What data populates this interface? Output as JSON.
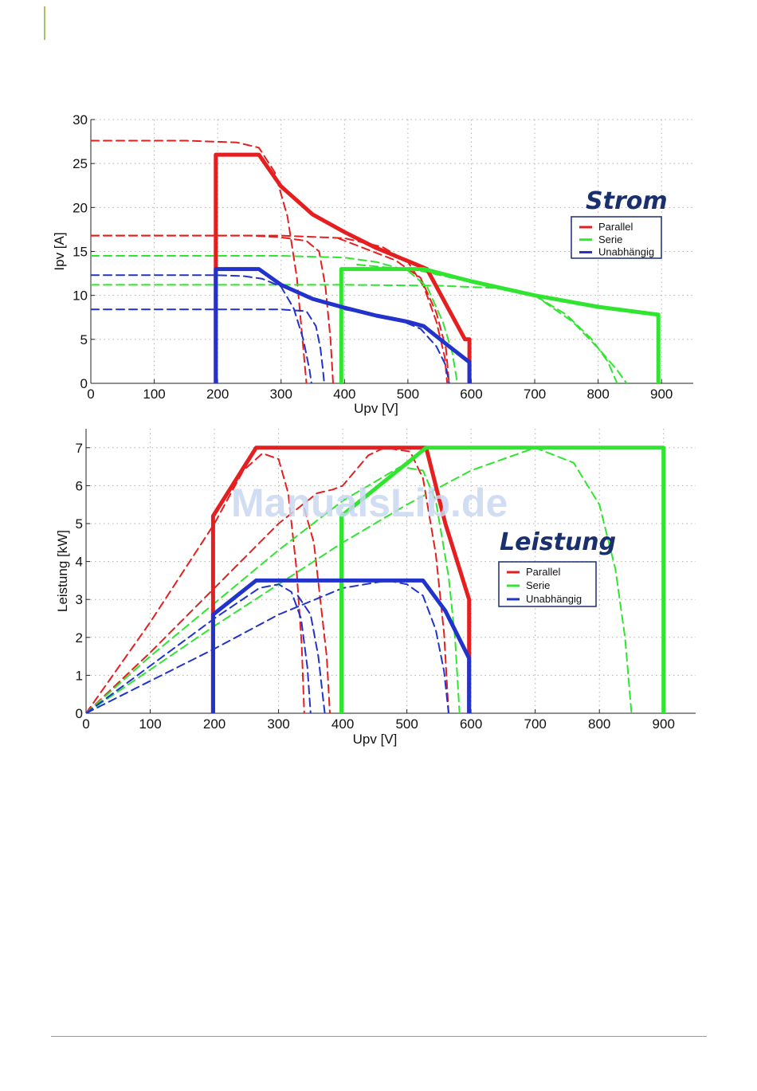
{
  "watermark": "ManualsLib.de",
  "colors": {
    "parallel": "#e51f1f",
    "serie": "#2fe52f",
    "unabhaengig": "#2233cc",
    "grid": "#b0b0b0",
    "title": "#1a2f6e"
  },
  "chart_data": [
    {
      "type": "line",
      "title": "Strom",
      "xlabel": "Upv [V]",
      "ylabel": "Ipv [A]",
      "xlim": [
        0,
        950
      ],
      "ylim": [
        0,
        30
      ],
      "xticks": [
        0,
        100,
        200,
        300,
        400,
        500,
        600,
        700,
        800,
        900
      ],
      "yticks": [
        0,
        5,
        10,
        15,
        20,
        25,
        30
      ],
      "grid": true,
      "legend_position": "right",
      "legend": [
        "Parallel",
        "Serie",
        "Unabhängig"
      ],
      "series": [
        {
          "name": "Parallel",
          "style": "solid",
          "color": "parallel",
          "points": [
            [
              197,
              0
            ],
            [
              197,
              26
            ],
            [
              265,
              26
            ],
            [
              300,
              22.4
            ],
            [
              350,
              19.2
            ],
            [
              400,
              17.2
            ],
            [
              450,
              15.4
            ],
            [
              500,
              13.9
            ],
            [
              530,
              13
            ],
            [
              560,
              9
            ],
            [
              590,
              5
            ],
            [
              597,
              5
            ],
            [
              597,
              0
            ]
          ]
        },
        {
          "name": "Serie",
          "style": "solid",
          "color": "serie",
          "points": [
            [
              395,
              0
            ],
            [
              395,
              13
            ],
            [
              525,
              13
            ],
            [
              600,
              11.6
            ],
            [
              700,
              10
            ],
            [
              800,
              8.7
            ],
            [
              895,
              7.8
            ],
            [
              895,
              0
            ]
          ]
        },
        {
          "name": "Unabhängig",
          "style": "solid",
          "color": "unabhaengig",
          "points": [
            [
              197,
              0
            ],
            [
              197,
              13
            ],
            [
              265,
              13
            ],
            [
              300,
              11.2
            ],
            [
              350,
              9.6
            ],
            [
              400,
              8.6
            ],
            [
              450,
              7.7
            ],
            [
              500,
              7
            ],
            [
              525,
              6.5
            ],
            [
              560,
              4.5
            ],
            [
              597,
              2.4
            ],
            [
              597,
              0
            ]
          ]
        },
        {
          "name": "",
          "style": "dashed",
          "color": "parallel",
          "points": [
            [
              0,
              27.6
            ],
            [
              150,
              27.6
            ],
            [
              230,
              27.4
            ],
            [
              265,
              26.8
            ],
            [
              290,
              24
            ],
            [
              310,
              19
            ],
            [
              325,
              12
            ],
            [
              335,
              4
            ],
            [
              340,
              0
            ]
          ]
        },
        {
          "name": "",
          "style": "dashed",
          "color": "parallel",
          "points": [
            [
              0,
              16.8
            ],
            [
              250,
              16.8
            ],
            [
              300,
              16.6
            ],
            [
              340,
              16.2
            ],
            [
              360,
              15
            ],
            [
              370,
              11
            ],
            [
              378,
              5
            ],
            [
              382,
              0
            ]
          ]
        },
        {
          "name": "",
          "style": "dashed",
          "color": "parallel",
          "points": [
            [
              0,
              16.8
            ],
            [
              300,
              16.8
            ],
            [
              400,
              16.5
            ],
            [
              460,
              15.5
            ],
            [
              500,
              13.8
            ],
            [
              525,
              11
            ],
            [
              545,
              7
            ],
            [
              558,
              3
            ],
            [
              562,
              0
            ]
          ]
        },
        {
          "name": "",
          "style": "dashed",
          "color": "parallel",
          "points": [
            [
              390,
              16.5
            ],
            [
              480,
              14
            ],
            [
              520,
              12
            ],
            [
              545,
              8
            ],
            [
              560,
              4
            ],
            [
              565,
              0
            ]
          ]
        },
        {
          "name": "",
          "style": "dashed",
          "color": "serie",
          "points": [
            [
              0,
              14.5
            ],
            [
              300,
              14.5
            ],
            [
              400,
              14.3
            ],
            [
              450,
              13.8
            ],
            [
              500,
              12.8
            ],
            [
              530,
              11
            ],
            [
              555,
              7
            ],
            [
              570,
              3.5
            ],
            [
              578,
              0
            ]
          ]
        },
        {
          "name": "",
          "style": "dashed",
          "color": "serie",
          "points": [
            [
              0,
              11.2
            ],
            [
              400,
              11.2
            ],
            [
              550,
              11.1
            ],
            [
              650,
              10.8
            ],
            [
              700,
              10
            ],
            [
              750,
              7.8
            ],
            [
              790,
              5
            ],
            [
              815,
              2.5
            ],
            [
              830,
              0
            ]
          ]
        },
        {
          "name": "",
          "style": "dashed",
          "color": "serie",
          "points": [
            [
              420,
              13.5
            ],
            [
              520,
              12.8
            ],
            [
              600,
              11.5
            ],
            [
              700,
              10
            ],
            [
              760,
              7
            ],
            [
              800,
              4
            ],
            [
              830,
              1.5
            ],
            [
              845,
              0
            ]
          ]
        },
        {
          "name": "",
          "style": "dashed",
          "color": "unabhaengig",
          "points": [
            [
              0,
              12.3
            ],
            [
              200,
              12.3
            ],
            [
              240,
              12.2
            ],
            [
              270,
              11.9
            ],
            [
              300,
              11
            ],
            [
              320,
              8.5
            ],
            [
              335,
              5
            ],
            [
              345,
              1.5
            ],
            [
              348,
              0
            ]
          ]
        },
        {
          "name": "",
          "style": "dashed",
          "color": "unabhaengig",
          "points": [
            [
              0,
              8.4
            ],
            [
              300,
              8.4
            ],
            [
              340,
              8.2
            ],
            [
              355,
              6.5
            ],
            [
              362,
              4
            ],
            [
              366,
              1.5
            ],
            [
              368,
              0
            ]
          ]
        },
        {
          "name": "",
          "style": "dashed",
          "color": "unabhaengig",
          "points": [
            [
              400,
              8.4
            ],
            [
              480,
              7.4
            ],
            [
              520,
              6.2
            ],
            [
              545,
              4.2
            ],
            [
              560,
              2
            ],
            [
              565,
              0
            ]
          ]
        }
      ]
    },
    {
      "type": "line",
      "title": "Leistung",
      "xlabel": "Upv [V]",
      "ylabel": "Leistung [kW]",
      "xlim": [
        0,
        950
      ],
      "ylim": [
        0,
        7.5
      ],
      "xticks": [
        0,
        100,
        200,
        300,
        400,
        500,
        600,
        700,
        800,
        900
      ],
      "yticks": [
        0,
        1,
        2,
        3,
        4,
        5,
        6,
        7
      ],
      "grid": true,
      "legend_position": "right",
      "legend": [
        "Parallel",
        "Serie",
        "Unabhängig"
      ],
      "series": [
        {
          "name": "Parallel",
          "style": "solid",
          "color": "parallel",
          "points": [
            [
              198,
              0
            ],
            [
              198,
              5.2
            ],
            [
              265,
              7
            ],
            [
              530,
              7
            ],
            [
              560,
              5
            ],
            [
              597,
              3
            ],
            [
              597,
              0
            ]
          ]
        },
        {
          "name": "Serie",
          "style": "solid",
          "color": "serie",
          "points": [
            [
              398,
              0
            ],
            [
              398,
              5.2
            ],
            [
              530,
              7
            ],
            [
              900,
              7
            ],
            [
              900,
              0
            ]
          ]
        },
        {
          "name": "Unabhängig",
          "style": "solid",
          "color": "unabhaengig",
          "points": [
            [
              198,
              0
            ],
            [
              198,
              2.6
            ],
            [
              265,
              3.5
            ],
            [
              525,
              3.5
            ],
            [
              560,
              2.7
            ],
            [
              597,
              1.45
            ],
            [
              597,
              0
            ]
          ]
        },
        {
          "name": "",
          "style": "dashed",
          "color": "parallel",
          "points": [
            [
              0,
              0
            ],
            [
              50,
              1.2
            ],
            [
              100,
              2.4
            ],
            [
              150,
              3.7
            ],
            [
              200,
              5
            ],
            [
              245,
              6.4
            ],
            [
              275,
              6.85
            ],
            [
              300,
              6.7
            ],
            [
              315,
              5.8
            ],
            [
              328,
              3.8
            ],
            [
              336,
              1.8
            ],
            [
              340,
              0
            ]
          ]
        },
        {
          "name": "",
          "style": "dashed",
          "color": "parallel",
          "points": [
            [
              0,
              0
            ],
            [
              100,
              1.6
            ],
            [
              200,
              3.3
            ],
            [
              300,
              5
            ],
            [
              360,
              5.8
            ],
            [
              385,
              5.9
            ],
            [
              400,
              6
            ],
            [
              440,
              6.8
            ],
            [
              465,
              7
            ],
            [
              505,
              6.9
            ],
            [
              525,
              6.2
            ],
            [
              545,
              4.2
            ],
            [
              558,
              2.1
            ],
            [
              565,
              0
            ]
          ]
        },
        {
          "name": "",
          "style": "dashed",
          "color": "parallel",
          "points": [
            [
              340,
              5.4
            ],
            [
              355,
              4.5
            ],
            [
              365,
              3
            ],
            [
              375,
              1.5
            ],
            [
              380,
              0
            ]
          ]
        },
        {
          "name": "",
          "style": "dashed",
          "color": "serie",
          "points": [
            [
              0,
              0
            ],
            [
              100,
              1.5
            ],
            [
              200,
              2.9
            ],
            [
              300,
              4.3
            ],
            [
              400,
              5.6
            ],
            [
              450,
              6.1
            ],
            [
              490,
              6.5
            ],
            [
              525,
              6.4
            ],
            [
              545,
              5.6
            ],
            [
              565,
              3.6
            ],
            [
              575,
              2
            ],
            [
              582,
              0
            ]
          ]
        },
        {
          "name": "",
          "style": "dashed",
          "color": "serie",
          "points": [
            [
              0,
              0
            ],
            [
              100,
              1.15
            ],
            [
              200,
              2.3
            ],
            [
              300,
              3.4
            ],
            [
              400,
              4.5
            ],
            [
              500,
              5.5
            ],
            [
              600,
              6.4
            ],
            [
              700,
              7
            ],
            [
              760,
              6.6
            ],
            [
              800,
              5.5
            ],
            [
              825,
              3.8
            ],
            [
              840,
              2
            ],
            [
              850,
              0
            ]
          ]
        },
        {
          "name": "",
          "style": "dashed",
          "color": "unabhaengig",
          "points": [
            [
              0,
              0
            ],
            [
              60,
              0.75
            ],
            [
              120,
              1.5
            ],
            [
              200,
              2.5
            ],
            [
              270,
              3.3
            ],
            [
              300,
              3.4
            ],
            [
              320,
              3.2
            ],
            [
              335,
              2.5
            ],
            [
              345,
              1.2
            ],
            [
              350,
              0
            ]
          ]
        },
        {
          "name": "",
          "style": "dashed",
          "color": "unabhaengig",
          "points": [
            [
              0,
              0
            ],
            [
              100,
              0.85
            ],
            [
              200,
              1.7
            ],
            [
              300,
              2.6
            ],
            [
              400,
              3.3
            ],
            [
              470,
              3.5
            ],
            [
              500,
              3.4
            ],
            [
              525,
              3.1
            ],
            [
              545,
              2.2
            ],
            [
              558,
              1.1
            ],
            [
              565,
              0
            ]
          ]
        },
        {
          "name": "",
          "style": "dashed",
          "color": "unabhaengig",
          "points": [
            [
              330,
              3.1
            ],
            [
              350,
              2.6
            ],
            [
              362,
              1.5
            ],
            [
              368,
              0.6
            ],
            [
              372,
              0
            ]
          ]
        }
      ]
    }
  ]
}
